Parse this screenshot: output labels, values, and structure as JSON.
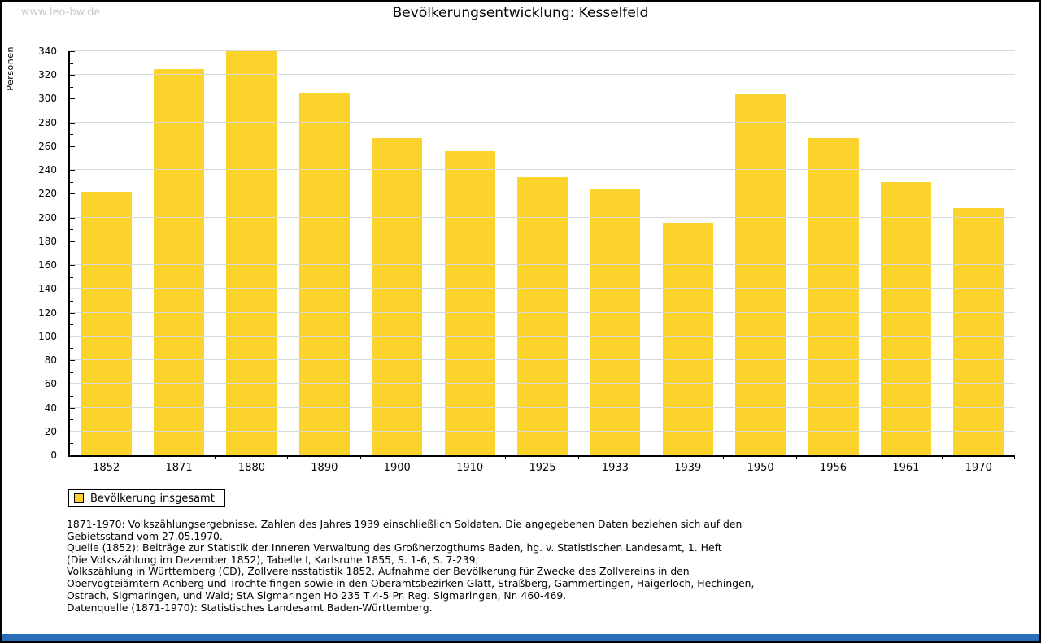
{
  "page": {
    "watermark": "www.leo-bw.de",
    "bottom_bar_color": "#2a6ebb"
  },
  "chart_data": {
    "type": "bar",
    "title": "Bevölkerungsentwicklung: Kesselfeld",
    "ylabel": "Personen",
    "xlabel": "",
    "categories": [
      "1852",
      "1871",
      "1880",
      "1890",
      "1900",
      "1910",
      "1925",
      "1933",
      "1939",
      "1950",
      "1956",
      "1961",
      "1970"
    ],
    "values": [
      222,
      325,
      340,
      305,
      267,
      256,
      234,
      224,
      196,
      304,
      267,
      230,
      208
    ],
    "series_name": "Bevölkerung insgesamt",
    "ylim": [
      0,
      340
    ],
    "ytick_major": 20,
    "ytick_minor": 10,
    "grid": true,
    "grid_color": "#d9d9d9",
    "bar_color": "#fcd32d",
    "legend_position": "bottom-left"
  },
  "legend": {
    "label": "Bevölkerung insgesamt"
  },
  "notes": {
    "para1_lines": [
      "1871-1970: Volkszählungsergebnisse. Zahlen des Jahres 1939 einschließlich Soldaten. Die angegebenen Daten beziehen sich auf den",
      "Gebietsstand vom 27.05.1970.",
      "Quelle (1852): Beiträge zur Statistik der Inneren Verwaltung des Großherzogthums Baden, hg. v. Statistischen Landesamt, 1. Heft",
      "(Die Volkszählung im Dezember 1852), Tabelle I, Karlsruhe 1855, S. 1-6, S. 7-239;",
      "Volkszählung in Württemberg (CD), Zollvereinsstatistik 1852. Aufnahme der Bevölkerung für Zwecke des Zollvereins in den",
      "Obervogteiämtern Achberg und Trochtelfingen sowie in den Oberamtsbezirken Glatt, Straßberg, Gammertingen, Haigerloch, Hechingen,",
      "Ostrach, Sigmaringen, und Wald; StA Sigmaringen Ho 235 T 4-5 Pr. Reg. Sigmaringen, Nr. 460-469."
    ],
    "para2": "Datenquelle (1871-1970): Statistisches Landesamt Baden-Württemberg."
  }
}
